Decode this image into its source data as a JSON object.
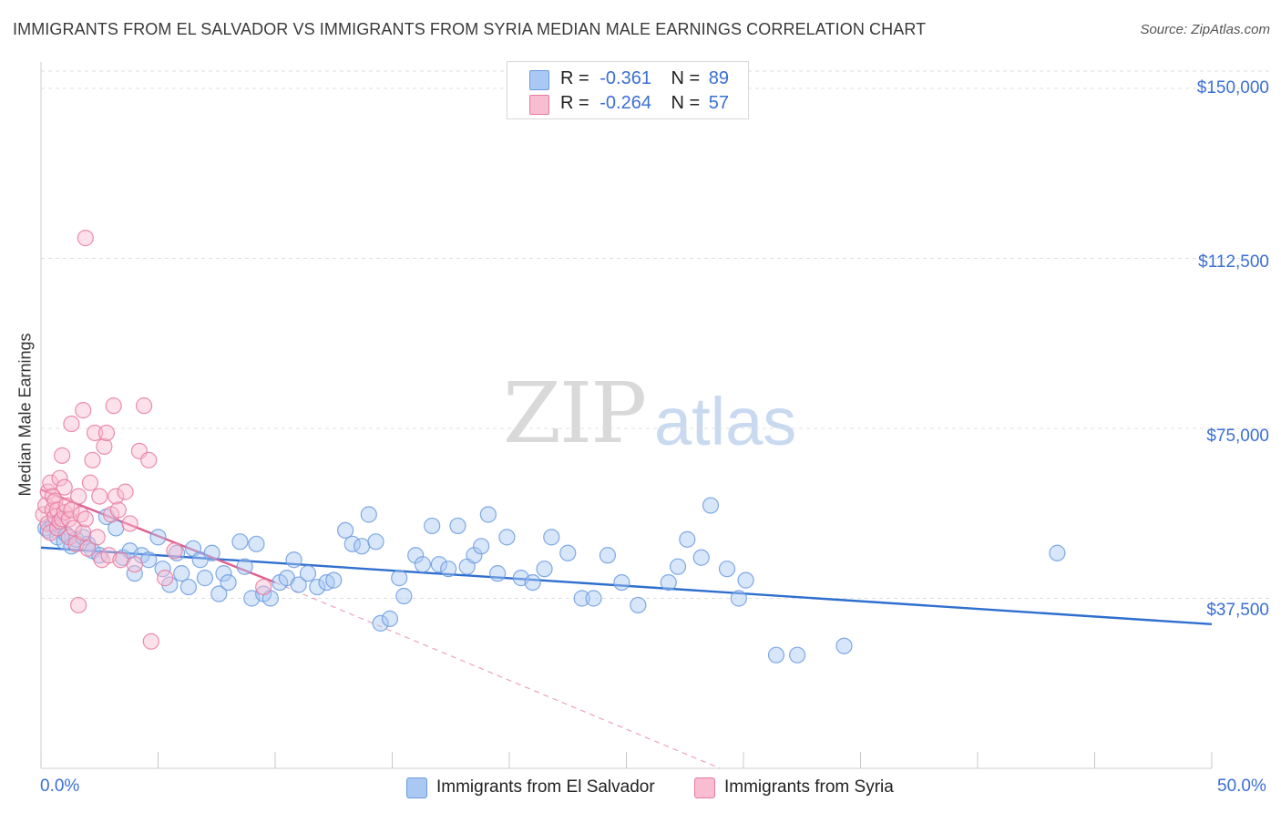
{
  "title": "IMMIGRANTS FROM EL SALVADOR VS IMMIGRANTS FROM SYRIA MEDIAN MALE EARNINGS CORRELATION CHART",
  "source": "Source: ZipAtlas.com",
  "watermark": {
    "zip": "ZIP",
    "atlas": "atlas"
  },
  "legend": {
    "rows": [
      {
        "r_label": "R =",
        "r_value": "-0.361",
        "n_label": "N =",
        "n_value": "89",
        "color": "#a9c8f2"
      },
      {
        "r_label": "R =",
        "r_value": "-0.264",
        "n_label": "N =",
        "n_value": "57",
        "color": "#f8bdd0"
      }
    ]
  },
  "chart_data": {
    "type": "scatter",
    "title": "IMMIGRANTS FROM EL SALVADOR VS IMMIGRANTS FROM SYRIA MEDIAN MALE EARNINGS CORRELATION CHART",
    "xlabel": "",
    "ylabel": "Median Male Earnings",
    "xlim": [
      0,
      50
    ],
    "ylim": [
      0,
      150000
    ],
    "x_tick_labels": [
      "0.0%",
      "50.0%"
    ],
    "y_ticks": [
      37500,
      75000,
      112500,
      150000
    ],
    "y_tick_labels": [
      "$37,500",
      "$75,000",
      "$112,500",
      "$150,000"
    ],
    "grid": true,
    "legend_position": "bottom",
    "series": [
      {
        "name": "Immigrants from El Salvador",
        "color": "#6b9be0",
        "fill": "#a9c8f2",
        "trend": {
          "x": [
            0,
            50
          ],
          "y": [
            48700,
            31800
          ],
          "style": "solid"
        },
        "points": [
          [
            0.2,
            53000
          ],
          [
            0.3,
            52500
          ],
          [
            0.5,
            54000
          ],
          [
            0.7,
            51000
          ],
          [
            0.8,
            53500
          ],
          [
            1.0,
            50000
          ],
          [
            1.1,
            51500
          ],
          [
            1.3,
            49000
          ],
          [
            1.5,
            50500
          ],
          [
            1.8,
            51000
          ],
          [
            2.0,
            49500
          ],
          [
            2.2,
            48000
          ],
          [
            2.5,
            47000
          ],
          [
            2.8,
            55500
          ],
          [
            3.2,
            53000
          ],
          [
            3.5,
            46500
          ],
          [
            3.8,
            48000
          ],
          [
            4.0,
            43000
          ],
          [
            4.3,
            47000
          ],
          [
            4.6,
            46000
          ],
          [
            5.0,
            51000
          ],
          [
            5.2,
            44000
          ],
          [
            5.5,
            40500
          ],
          [
            5.8,
            47500
          ],
          [
            6.0,
            43000
          ],
          [
            6.3,
            40000
          ],
          [
            6.5,
            48500
          ],
          [
            6.8,
            46000
          ],
          [
            7.0,
            42000
          ],
          [
            7.3,
            47500
          ],
          [
            7.6,
            38500
          ],
          [
            7.8,
            43000
          ],
          [
            8.0,
            41000
          ],
          [
            8.5,
            50000
          ],
          [
            8.7,
            44500
          ],
          [
            9.0,
            37500
          ],
          [
            9.2,
            49500
          ],
          [
            9.5,
            38500
          ],
          [
            9.8,
            37500
          ],
          [
            10.2,
            41000
          ],
          [
            10.5,
            42000
          ],
          [
            10.8,
            46000
          ],
          [
            11.0,
            40500
          ],
          [
            11.4,
            43000
          ],
          [
            11.8,
            40000
          ],
          [
            12.2,
            41000
          ],
          [
            12.5,
            41500
          ],
          [
            13.0,
            52500
          ],
          [
            13.3,
            49500
          ],
          [
            13.7,
            49000
          ],
          [
            14.0,
            56000
          ],
          [
            14.3,
            50000
          ],
          [
            14.5,
            32000
          ],
          [
            14.9,
            33000
          ],
          [
            15.3,
            42000
          ],
          [
            15.5,
            38000
          ],
          [
            16.0,
            47000
          ],
          [
            16.3,
            45000
          ],
          [
            16.7,
            53500
          ],
          [
            17.0,
            45000
          ],
          [
            17.4,
            44000
          ],
          [
            17.8,
            53500
          ],
          [
            18.2,
            44500
          ],
          [
            18.5,
            47000
          ],
          [
            18.8,
            49000
          ],
          [
            19.1,
            56000
          ],
          [
            19.5,
            43000
          ],
          [
            19.9,
            51000
          ],
          [
            20.5,
            42000
          ],
          [
            21.0,
            41000
          ],
          [
            21.5,
            44000
          ],
          [
            21.8,
            51000
          ],
          [
            22.5,
            47500
          ],
          [
            23.1,
            37500
          ],
          [
            23.6,
            37500
          ],
          [
            24.2,
            47000
          ],
          [
            24.8,
            41000
          ],
          [
            25.5,
            36000
          ],
          [
            26.8,
            41000
          ],
          [
            27.2,
            44500
          ],
          [
            27.6,
            50500
          ],
          [
            28.2,
            46500
          ],
          [
            28.6,
            58000
          ],
          [
            29.3,
            44000
          ],
          [
            29.8,
            37500
          ],
          [
            30.1,
            41500
          ],
          [
            31.4,
            25000
          ],
          [
            32.3,
            25000
          ],
          [
            34.3,
            27000
          ],
          [
            43.4,
            47500
          ]
        ]
      },
      {
        "name": "Immigrants from Syria",
        "color": "#e87aa0",
        "fill": "#f8bdd0",
        "trend": {
          "x": [
            0,
            10
          ],
          "y": [
            61500,
            41000
          ],
          "style": "solid",
          "extended_x": [
            10,
            29
          ],
          "extended_y": [
            41000,
            0
          ],
          "extended_style": "dashed"
        },
        "points": [
          [
            0.1,
            56000
          ],
          [
            0.2,
            58000
          ],
          [
            0.3,
            54000
          ],
          [
            0.3,
            61000
          ],
          [
            0.4,
            63000
          ],
          [
            0.4,
            52000
          ],
          [
            0.5,
            57000
          ],
          [
            0.5,
            60000
          ],
          [
            0.6,
            55500
          ],
          [
            0.6,
            59000
          ],
          [
            0.7,
            53000
          ],
          [
            0.7,
            57000
          ],
          [
            0.8,
            54500
          ],
          [
            0.8,
            64000
          ],
          [
            0.9,
            55000
          ],
          [
            0.9,
            69000
          ],
          [
            1.0,
            56500
          ],
          [
            1.0,
            62000
          ],
          [
            1.1,
            58000
          ],
          [
            1.2,
            55000
          ],
          [
            1.2,
            51000
          ],
          [
            1.3,
            57000
          ],
          [
            1.3,
            76000
          ],
          [
            1.4,
            53000
          ],
          [
            1.5,
            49500
          ],
          [
            1.6,
            60000
          ],
          [
            1.6,
            36000
          ],
          [
            1.7,
            56000
          ],
          [
            1.8,
            52000
          ],
          [
            1.8,
            79000
          ],
          [
            1.9,
            55000
          ],
          [
            1.9,
            117000
          ],
          [
            2.0,
            48500
          ],
          [
            2.1,
            63000
          ],
          [
            2.2,
            68000
          ],
          [
            2.3,
            74000
          ],
          [
            2.4,
            51000
          ],
          [
            2.5,
            60000
          ],
          [
            2.6,
            46000
          ],
          [
            2.7,
            71000
          ],
          [
            2.8,
            74000
          ],
          [
            2.9,
            47000
          ],
          [
            3.0,
            56000
          ],
          [
            3.1,
            80000
          ],
          [
            3.2,
            60000
          ],
          [
            3.3,
            57000
          ],
          [
            3.4,
            46000
          ],
          [
            3.6,
            61000
          ],
          [
            3.8,
            54000
          ],
          [
            4.0,
            45000
          ],
          [
            4.2,
            70000
          ],
          [
            4.4,
            80000
          ],
          [
            4.6,
            68000
          ],
          [
            4.7,
            28000
          ],
          [
            5.3,
            42000
          ],
          [
            5.7,
            48000
          ],
          [
            9.5,
            40000
          ]
        ]
      }
    ]
  }
}
